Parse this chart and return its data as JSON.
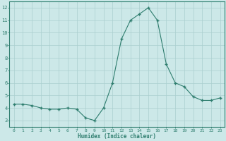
{
  "x": [
    0,
    1,
    2,
    3,
    4,
    5,
    6,
    7,
    8,
    9,
    10,
    11,
    12,
    13,
    14,
    15,
    16,
    17,
    18,
    19,
    20,
    21,
    22,
    23
  ],
  "y": [
    4.3,
    4.3,
    4.2,
    4.0,
    3.9,
    3.9,
    4.0,
    3.9,
    3.2,
    3.0,
    4.0,
    6.0,
    9.5,
    11.0,
    11.5,
    12.0,
    11.0,
    7.5,
    6.0,
    5.7,
    4.9,
    4.6,
    4.6,
    4.8
  ],
  "xlabel": "Humidex (Indice chaleur)",
  "line_color": "#2e7d6e",
  "bg_color": "#cce8e8",
  "grid_color": "#aacfcf",
  "tick_color": "#2e7d6e",
  "spine_color": "#2e7d6e",
  "xlim": [
    -0.5,
    23.5
  ],
  "ylim": [
    2.5,
    12.5
  ],
  "yticks": [
    3,
    4,
    5,
    6,
    7,
    8,
    9,
    10,
    11,
    12
  ],
  "xticks": [
    0,
    1,
    2,
    3,
    4,
    5,
    6,
    7,
    8,
    9,
    10,
    11,
    12,
    13,
    14,
    15,
    16,
    17,
    18,
    19,
    20,
    21,
    22,
    23
  ]
}
